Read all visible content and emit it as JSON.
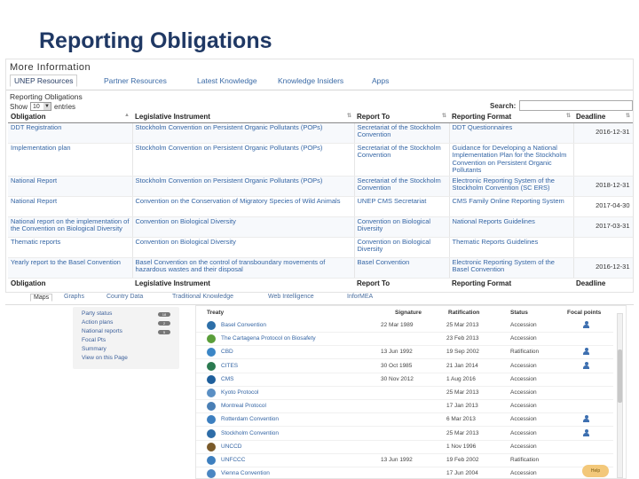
{
  "slide": {
    "title": "Reporting Obligations"
  },
  "top": {
    "section_title": "More Information",
    "tabs": [
      "UNEP Resources",
      "Partner Resources",
      "Latest Knowledge",
      "Knowledge Insiders",
      "Apps"
    ],
    "sub_title": "Reporting Obligations",
    "show_label": "Show",
    "show_value": "10",
    "entries_label": "entries",
    "search_label": "Search:",
    "columns": [
      "Obligation",
      "Legislative Instrument",
      "Report To",
      "Reporting Format",
      "Deadline"
    ],
    "rows": [
      {
        "obligation": "DDT Registration",
        "instrument": "Stockholm Convention on Persistent Organic Pollutants (POPs)",
        "report_to": "Secretariat of the Stockholm Convention",
        "format": "DDT Questionnaires",
        "deadline": "2016-12-31"
      },
      {
        "obligation": "Implementation plan",
        "instrument": "Stockholm Convention on Persistent Organic Pollutants (POPs)",
        "report_to": "Secretariat of the Stockholm Convention",
        "format": "Guidance for Developing a National Implementation Plan for the Stockholm Convention on Persistent Organic Pollutants",
        "deadline": ""
      },
      {
        "obligation": "National Report",
        "instrument": "Stockholm Convention on Persistent Organic Pollutants (POPs)",
        "report_to": "Secretariat of the Stockholm Convention",
        "format": "Electronic Reporting System of the Stockholm Convention (SC ERS)",
        "deadline": "2018-12-31"
      },
      {
        "obligation": "National Report",
        "instrument": "Convention on the Conservation of Migratory Species of Wild Animals",
        "report_to": "UNEP CMS Secretariat",
        "format": "CMS Family Online Reporting System",
        "deadline": "2017-04-30"
      },
      {
        "obligation": "National report on the implementation of the Convention on Biological Diversity",
        "instrument": "Convention on Biological Diversity",
        "report_to": "Convention on Biological Diversity",
        "format": "National Reports Guidelines",
        "deadline": "2017-03-31"
      },
      {
        "obligation": "Thematic reports",
        "instrument": "Convention on Biological Diversity",
        "report_to": "Convention on Biological Diversity",
        "format": "Thematic Reports Guidelines",
        "deadline": ""
      },
      {
        "obligation": "Yearly report to the Basel Convention",
        "instrument": "Basel Convention on the control of transboundary movements of hazardous wastes and their disposal",
        "report_to": "Basel Convention",
        "format": "Electronic Reporting System of the Basel Convention",
        "deadline": "2016-12-31"
      }
    ]
  },
  "bottom": {
    "tabs": [
      "Maps",
      "Graphs",
      "Country Data",
      "Traditional Knowledge",
      "Web Intelligence",
      "InforMEA"
    ],
    "menu": [
      {
        "label": "Party status",
        "badge": "18"
      },
      {
        "label": "Action plans",
        "badge": "2"
      },
      {
        "label": "National reports",
        "badge": "5"
      },
      {
        "label": "Focal Pts",
        "badge": ""
      },
      {
        "label": "Summary",
        "badge": ""
      },
      {
        "label": "View on this Page",
        "badge": ""
      }
    ],
    "treaty_headers": [
      "Treaty",
      "Signature",
      "Ratification",
      "Status",
      "Focal points"
    ],
    "treaties": [
      {
        "name": "Basel Convention",
        "signature": "22 Mar 1989",
        "ratification": "25 Mar 2013",
        "status": "Accession",
        "focal": true,
        "color": "#2d6fa8"
      },
      {
        "name": "The Cartagena Protocol on Biosafety",
        "signature": "",
        "ratification": "23 Feb 2013",
        "status": "Accession",
        "focal": false,
        "color": "#5a9e3a"
      },
      {
        "name": "CBD",
        "signature": "13 Jun 1992",
        "ratification": "19 Sep 2002",
        "status": "Ratification",
        "focal": true,
        "color": "#3b86c6"
      },
      {
        "name": "CITES",
        "signature": "30 Oct 1985",
        "ratification": "21 Jan 2014",
        "status": "Accession",
        "focal": true,
        "color": "#2b7a50"
      },
      {
        "name": "CMS",
        "signature": "30 Nov 2012",
        "ratification": "1 Aug 2016",
        "status": "Accession",
        "focal": false,
        "color": "#1e5f9c"
      },
      {
        "name": "Kyoto Protocol",
        "signature": "",
        "ratification": "25 Mar 2013",
        "status": "Accession",
        "focal": false,
        "color": "#5a8fc4"
      },
      {
        "name": "Montreal Protocol",
        "signature": "",
        "ratification": "17 Jan 2013",
        "status": "Accession",
        "focal": false,
        "color": "#4a7fb5"
      },
      {
        "name": "Rotterdam Convention",
        "signature": "",
        "ratification": "6 Mar 2013",
        "status": "Accession",
        "focal": true,
        "color": "#3c7fc0"
      },
      {
        "name": "Stockholm Convention",
        "signature": "",
        "ratification": "25 Mar 2013",
        "status": "Accession",
        "focal": true,
        "color": "#2e6da8"
      },
      {
        "name": "UNCCD",
        "signature": "",
        "ratification": "1 Nov 1996",
        "status": "Accession",
        "focal": false,
        "color": "#7a5a2a"
      },
      {
        "name": "UNFCCC",
        "signature": "13 Jun 1992",
        "ratification": "19 Feb 2002",
        "status": "Ratification",
        "focal": false,
        "color": "#3d7fbf"
      },
      {
        "name": "Vienna Convention",
        "signature": "",
        "ratification": "17 Jun 2004",
        "status": "Accession",
        "focal": false,
        "color": "#4a86c2"
      }
    ],
    "chat_label": "Help"
  }
}
